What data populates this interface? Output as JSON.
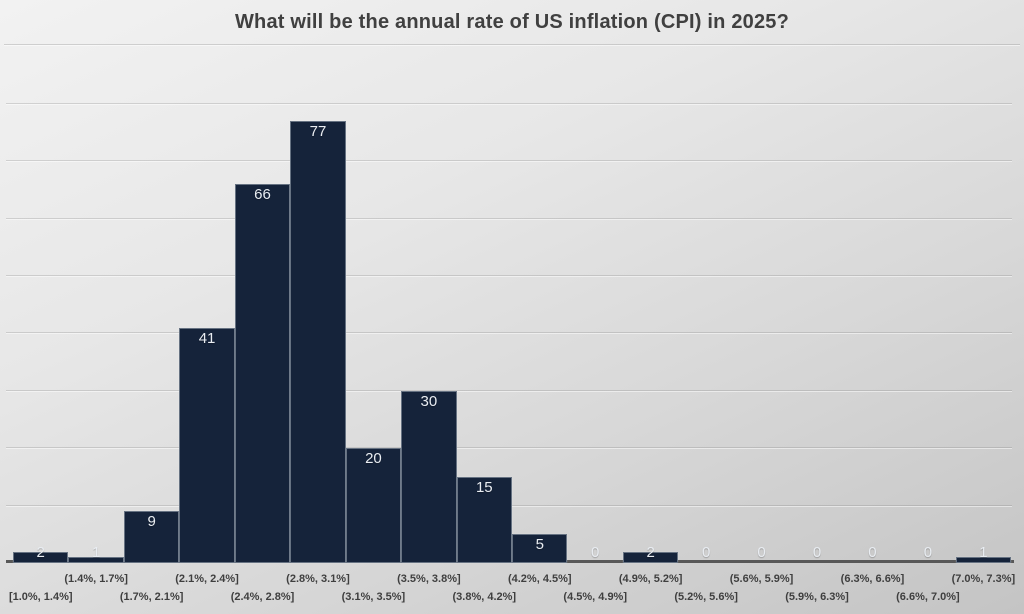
{
  "chart": {
    "title": "What will be the annual rate of US inflation (CPI) in 2025?"
  },
  "chart_data": {
    "type": "bar",
    "title": "What will be the annual rate of US inflation (CPI) in 2025?",
    "categories": [
      "[1.0%, 1.4%]",
      "(1.4%, 1.7%]",
      "(1.7%, 2.1%]",
      "(2.1%, 2.4%]",
      "(2.4%, 2.8%]",
      "(2.8%, 3.1%]",
      "(3.1%, 3.5%]",
      "(3.5%, 3.8%]",
      "(3.8%, 4.2%]",
      "(4.2%, 4.5%]",
      "(4.5%, 4.9%]",
      "(4.9%, 5.2%]",
      "(5.2%, 5.6%]",
      "(5.6%, 5.9%]",
      "(5.9%, 6.3%]",
      "(6.3%, 6.6%]",
      "(6.6%, 7.0%]",
      "(7.0%, 7.3%]"
    ],
    "values": [
      2,
      1,
      9,
      41,
      66,
      77,
      20,
      30,
      15,
      5,
      0,
      2,
      0,
      0,
      0,
      0,
      0,
      1
    ],
    "xlabel": "",
    "ylabel": "",
    "ylim": [
      0,
      80
    ],
    "gridline_step": 10,
    "grid": "horizontal",
    "legend": "none",
    "y_tick_labels_visible": false,
    "data_labels": "inside-end",
    "x_label_layout": "staggered-two-rows",
    "colors": {
      "bar_fill": "#15233a",
      "bar_border": "#8d99a6",
      "value_label": "#e9edf2",
      "axis_line": "#585858",
      "tick_label": "#3f3f3f",
      "title": "#404040",
      "background_top": "#f2f2f2",
      "background_bottom": "#c4c4c4"
    }
  }
}
